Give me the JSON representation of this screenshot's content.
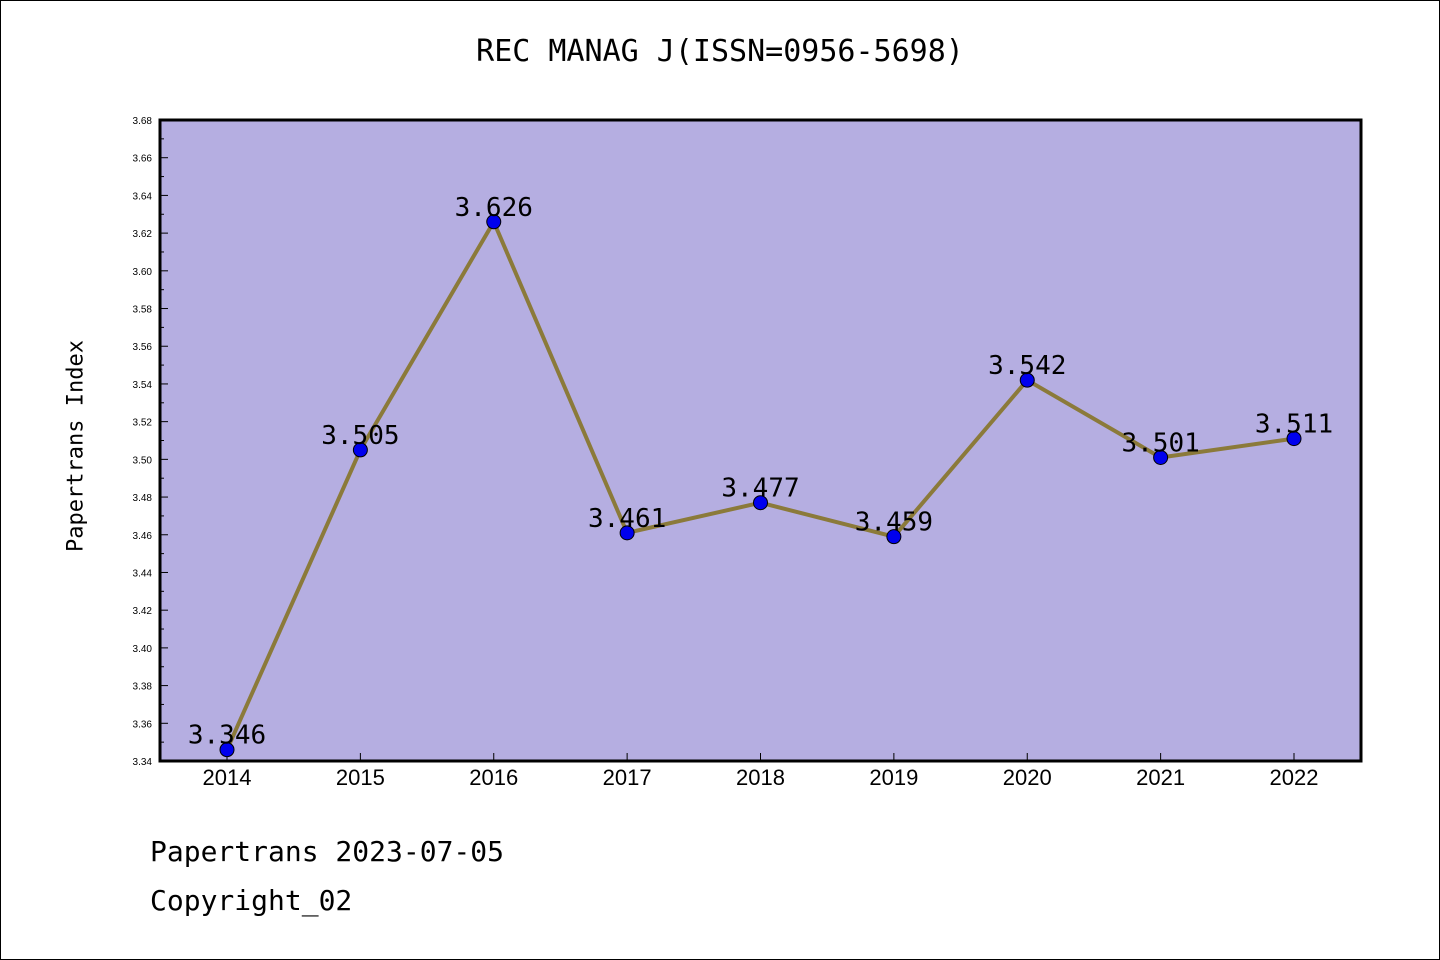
{
  "colors": {
    "plot_background": "#b5aee1",
    "line": "#8b7a3a",
    "marker": "#0000ee"
  },
  "chart_data": {
    "type": "line",
    "title": "REC MANAG J(ISSN=0956-5698)",
    "xlabel": "",
    "ylabel": "Papertrans Index",
    "categories": [
      "2014",
      "2015",
      "2016",
      "2017",
      "2018",
      "2019",
      "2020",
      "2021",
      "2022"
    ],
    "values": [
      3.346,
      3.505,
      3.626,
      3.461,
      3.477,
      3.459,
      3.542,
      3.501,
      3.511
    ],
    "data_labels": [
      "3.346",
      "3.505",
      "3.626",
      "3.461",
      "3.477",
      "3.459",
      "3.542",
      "3.501",
      "3.511"
    ],
    "ylim": [
      3.34,
      3.68
    ],
    "yticks": [
      "3.34",
      "3.36",
      "3.38",
      "3.40",
      "3.42",
      "3.44",
      "3.46",
      "3.48",
      "3.50",
      "3.52",
      "3.54",
      "3.56",
      "3.58",
      "3.60",
      "3.62",
      "3.64",
      "3.66",
      "3.68"
    ],
    "grid": false,
    "legend": "none"
  },
  "footer": {
    "date_text": "Papertrans 2023-07-05",
    "copyright": "Copyright_02"
  }
}
